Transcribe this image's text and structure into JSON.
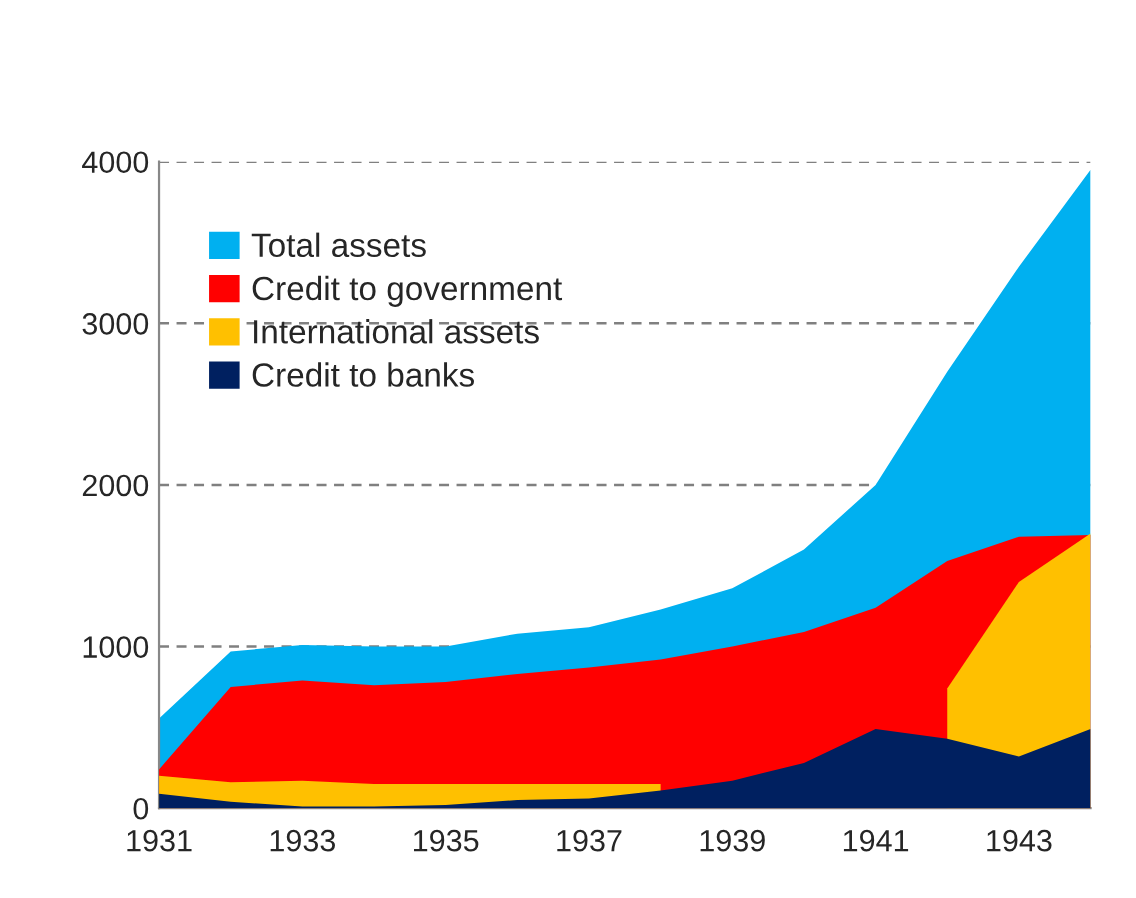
{
  "chart_data": {
    "type": "area",
    "x": [
      1931,
      1932,
      1933,
      1934,
      1935,
      1936,
      1937,
      1938,
      1939,
      1940,
      1941,
      1942,
      1943,
      1944
    ],
    "series": [
      {
        "name": "Total assets",
        "color": "#00b0f0",
        "values": [
          555,
          970,
          1010,
          1000,
          1000,
          1080,
          1120,
          1230,
          1360,
          1600,
          2000,
          2700,
          3350,
          3950
        ]
      },
      {
        "name": "Credit to government",
        "color": "#ff0000",
        "values": [
          240,
          750,
          790,
          760,
          780,
          830,
          870,
          920,
          1000,
          1090,
          1240,
          1530,
          1680,
          1690
        ]
      },
      {
        "name": "International assets",
        "color": "#ffc000",
        "values": [
          200,
          160,
          170,
          150,
          150,
          150,
          150,
          150,
          null,
          null,
          null,
          740,
          1400,
          1700
        ]
      },
      {
        "name": "Credit to banks",
        "color": "#002060",
        "values": [
          90,
          40,
          10,
          10,
          20,
          50,
          60,
          110,
          170,
          280,
          490,
          430,
          320,
          490
        ]
      }
    ],
    "xlim": [
      1931,
      1944
    ],
    "xticks": [
      1931,
      1933,
      1935,
      1937,
      1939,
      1941,
      1943
    ],
    "ylim": [
      0,
      4000
    ],
    "yticks": [
      0,
      1000,
      2000,
      3000,
      4000
    ],
    "grid": "y",
    "legend": "top left"
  }
}
